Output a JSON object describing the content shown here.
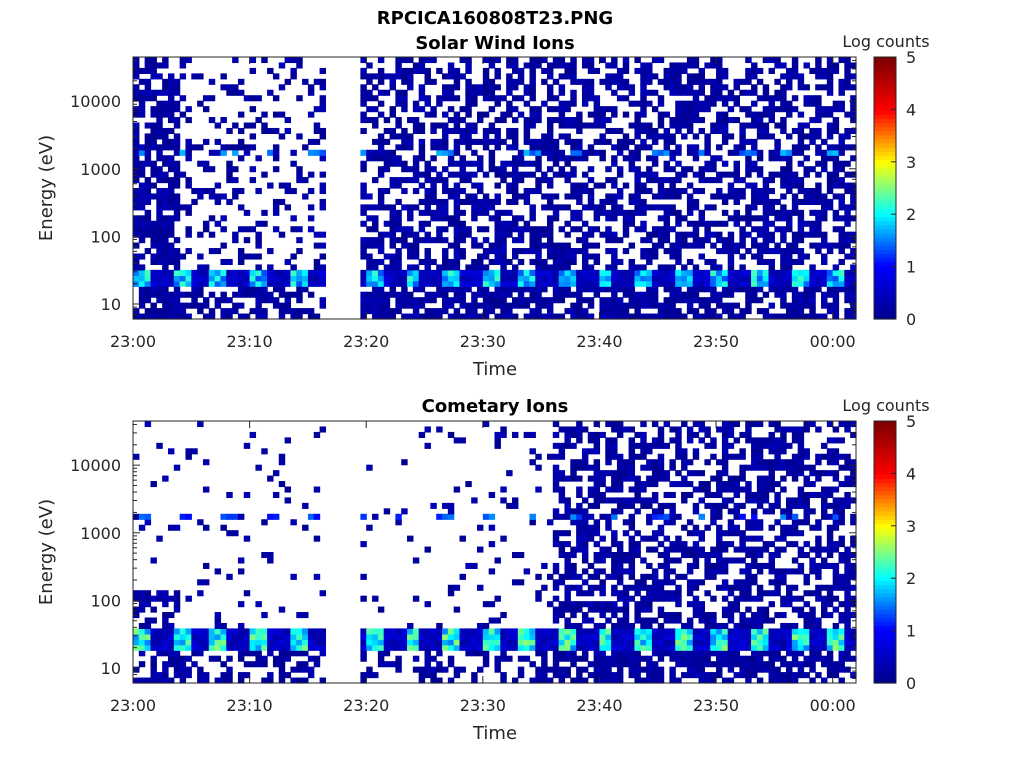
{
  "figure_title": "RPCICA160808T23.PNG",
  "colorbar_label": "Log counts",
  "colormap": [
    "#00008f",
    "#0000ff",
    "#00ffff",
    "#ffff00",
    "#ff0000",
    "#800000"
  ],
  "chart_data": [
    {
      "type": "heatmap",
      "title": "Solar Wind Ions",
      "xlabel": "Time",
      "ylabel": "Energy (eV)",
      "x_ticks": [
        "23:00",
        "23:10",
        "23:20",
        "23:30",
        "23:40",
        "23:50",
        "00:00"
      ],
      "x_range_minutes": [
        0,
        62
      ],
      "y_ticks": [
        10,
        100,
        1000,
        10000
      ],
      "y_ticklabels": [
        "10",
        "100",
        "1000",
        "10000"
      ],
      "y_range": [
        6,
        45000
      ],
      "y_scale": "log",
      "color_range": [
        0,
        5
      ],
      "colorbar_ticks": [
        "0",
        "1",
        "2",
        "3",
        "4",
        "5"
      ],
      "data_gap_minutes": [
        16.3,
        19.6
      ],
      "notable_bands": [
        {
          "energy_eV": [
            20,
            35
          ],
          "log_counts": [
            1.3,
            2.3
          ],
          "description": "persistent low-energy band"
        },
        {
          "energy_eV": [
            1500,
            2000
          ],
          "log_counts": [
            1.3,
            1.8
          ],
          "description": "solar wind proton band"
        }
      ]
    },
    {
      "type": "heatmap",
      "title": "Cometary Ions",
      "xlabel": "Time",
      "ylabel": "Energy (eV)",
      "x_ticks": [
        "23:00",
        "23:10",
        "23:20",
        "23:30",
        "23:40",
        "23:50",
        "00:00"
      ],
      "x_range_minutes": [
        0,
        62
      ],
      "y_ticks": [
        10,
        100,
        1000,
        10000
      ],
      "y_ticklabels": [
        "10",
        "100",
        "1000",
        "10000"
      ],
      "y_range": [
        6,
        45000
      ],
      "y_scale": "log",
      "color_range": [
        0,
        5
      ],
      "colorbar_ticks": [
        "0",
        "1",
        "2",
        "3",
        "4",
        "5"
      ],
      "data_gap_minutes": [
        16.3,
        19.6
      ],
      "notable_bands": [
        {
          "energy_eV": [
            18,
            40
          ],
          "log_counts": [
            1.5,
            2.6
          ],
          "description": "low-energy cometary ion band"
        },
        {
          "energy_eV": [
            1500,
            2000
          ],
          "log_counts": [
            1.0,
            1.6
          ],
          "description": "faint band"
        }
      ]
    }
  ]
}
